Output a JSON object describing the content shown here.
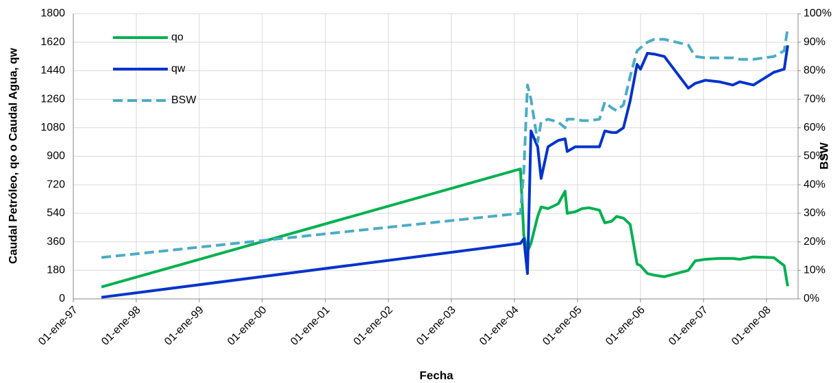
{
  "chart_data": {
    "type": "line",
    "xlabel": "Fecha",
    "ylabel": "Caudal Petróleo, qo o Caudal Agua, qw",
    "y2label": "BSW",
    "x": [
      "1997-06-13",
      "2004-02-05",
      "2004-02-25",
      "2004-03-17",
      "2004-04-06",
      "2004-05-15",
      "2004-06-04",
      "2004-07-14",
      "2004-09-11",
      "2004-10-21",
      "2004-11-02",
      "2004-12-19",
      "2005-01-28",
      "2005-03-09",
      "2005-05-08",
      "2005-06-08",
      "2005-07-18",
      "2005-08-15",
      "2005-09-24",
      "2005-11-02",
      "2005-12-12",
      "2006-01-01",
      "2006-02-10",
      "2006-03-21",
      "2006-05-19",
      "2006-10-05",
      "2006-11-14",
      "2007-01-12",
      "2007-04-02",
      "2007-06-20",
      "2007-07-30",
      "2007-10-17",
      "2008-02-13",
      "2008-04-13",
      "2008-05-03"
    ],
    "series": [
      {
        "name": "qo",
        "color": "#00b050",
        "dashed": false,
        "values": [
          75,
          820,
          400,
          300,
          350,
          520,
          580,
          570,
          600,
          680,
          540,
          550,
          570,
          575,
          560,
          480,
          490,
          520,
          510,
          470,
          220,
          210,
          160,
          150,
          140,
          180,
          240,
          250,
          255,
          255,
          250,
          265,
          260,
          210,
          80
        ]
      },
      {
        "name": "qw",
        "color": "#0033cc",
        "dashed": false,
        "values": [
          10,
          350,
          380,
          160,
          1060,
          960,
          760,
          960,
          1000,
          1010,
          930,
          960,
          960,
          960,
          960,
          1060,
          1050,
          1050,
          1080,
          1250,
          1480,
          1450,
          1550,
          1545,
          1530,
          1330,
          1360,
          1380,
          1370,
          1350,
          1370,
          1350,
          1430,
          1450,
          1600
        ]
      },
      {
        "name": "BSW",
        "color": "#4bacc6",
        "dashed": true,
        "axis": "y2",
        "values": [
          14.5,
          30,
          45,
          75,
          70,
          55,
          62,
          63,
          62,
          60,
          63,
          63,
          62.5,
          62.5,
          63,
          69,
          67,
          66,
          68,
          78,
          87,
          88,
          90,
          91,
          91,
          89,
          85,
          84.5,
          84.5,
          84.5,
          84,
          84,
          85,
          87,
          95
        ]
      }
    ],
    "xlim": [
      "1997-01-01",
      "2008-07-02"
    ],
    "xticks": [
      {
        "value": "1997-01-01",
        "label": "01-ene-97"
      },
      {
        "value": "1998-01-01",
        "label": "01-ene-98"
      },
      {
        "value": "1999-01-01",
        "label": "01-ene-99"
      },
      {
        "value": "2000-01-01",
        "label": "01-ene-00"
      },
      {
        "value": "2001-01-01",
        "label": "01-ene-01"
      },
      {
        "value": "2002-01-01",
        "label": "01-ene-02"
      },
      {
        "value": "2003-01-01",
        "label": "01-ene-03"
      },
      {
        "value": "2004-01-01",
        "label": "01-ene-04"
      },
      {
        "value": "2005-01-01",
        "label": "01-ene-05"
      },
      {
        "value": "2006-01-01",
        "label": "01-ene-06"
      },
      {
        "value": "2007-01-01",
        "label": "01-ene-07"
      },
      {
        "value": "2008-01-01",
        "label": "01-ene-08"
      }
    ],
    "ylim": [
      0,
      1800
    ],
    "yticks": [
      0,
      180,
      360,
      540,
      720,
      900,
      1080,
      1260,
      1440,
      1620,
      1800
    ],
    "y2lim": [
      0,
      100
    ],
    "y2ticks": [
      {
        "value": 0,
        "label": "0%"
      },
      {
        "value": 10,
        "label": "10%"
      },
      {
        "value": 20,
        "label": "20%"
      },
      {
        "value": 30,
        "label": "30%"
      },
      {
        "value": 40,
        "label": "40%"
      },
      {
        "value": 50,
        "label": "50%"
      },
      {
        "value": 60,
        "label": "60%"
      },
      {
        "value": 70,
        "label": "70%"
      },
      {
        "value": 80,
        "label": "80%"
      },
      {
        "value": 90,
        "label": "90%"
      },
      {
        "value": 100,
        "label": "100%"
      }
    ],
    "grid": true
  }
}
